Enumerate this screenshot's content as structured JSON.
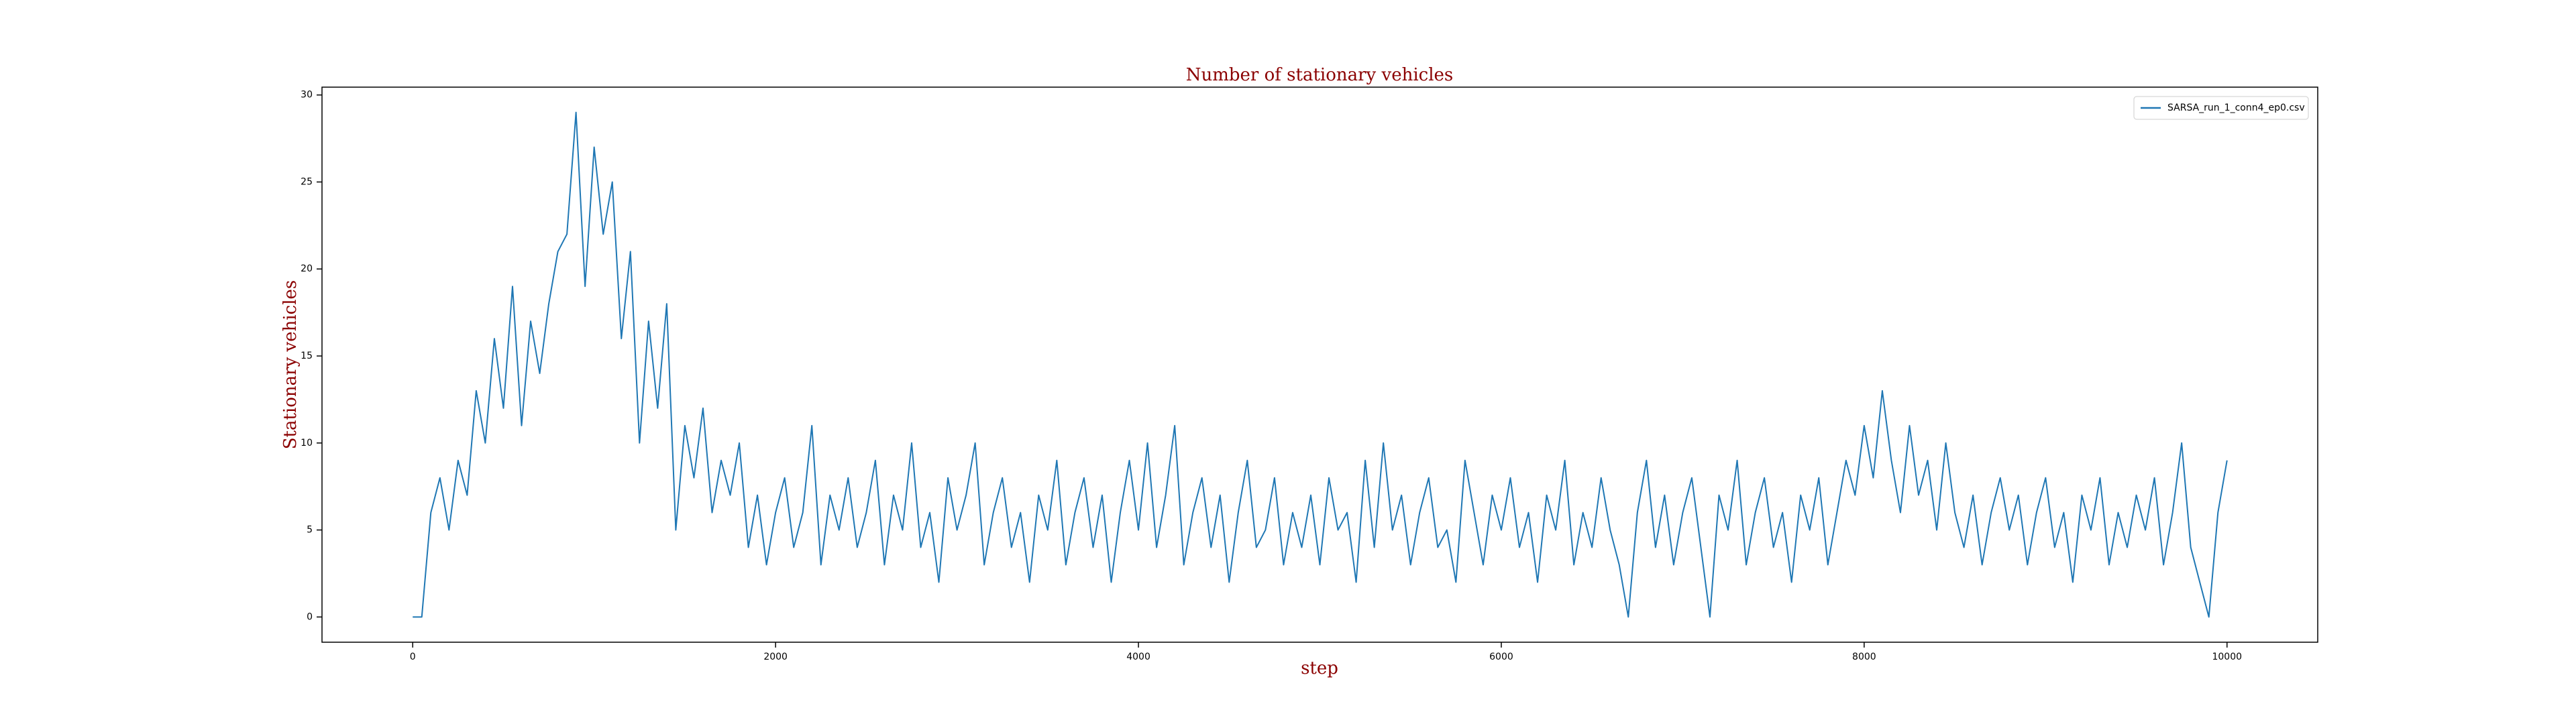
{
  "chart_data": {
    "type": "line",
    "title": "Number of stationary vehicles",
    "xlabel": "step",
    "ylabel": "Stationary vehicles",
    "x": [
      0,
      50,
      100,
      150,
      200,
      250,
      300,
      350,
      400,
      450,
      500,
      550,
      600,
      650,
      700,
      750,
      800,
      850,
      900,
      950,
      1000,
      1050,
      1100,
      1150,
      1200,
      1250,
      1300,
      1350,
      1400,
      1450,
      1500,
      1550,
      1600,
      1650,
      1700,
      1750,
      1800,
      1850,
      1900,
      1950,
      2000,
      2050,
      2100,
      2150,
      2200,
      2250,
      2300,
      2350,
      2400,
      2450,
      2500,
      2550,
      2600,
      2650,
      2700,
      2750,
      2800,
      2850,
      2900,
      2950,
      3000,
      3050,
      3100,
      3150,
      3200,
      3250,
      3300,
      3350,
      3400,
      3450,
      3500,
      3550,
      3600,
      3650,
      3700,
      3750,
      3800,
      3850,
      3900,
      3950,
      4000,
      4050,
      4100,
      4150,
      4200,
      4250,
      4300,
      4350,
      4400,
      4450,
      4500,
      4550,
      4600,
      4650,
      4700,
      4750,
      4800,
      4850,
      4900,
      4950,
      5000,
      5050,
      5100,
      5150,
      5200,
      5250,
      5300,
      5350,
      5400,
      5450,
      5500,
      5550,
      5600,
      5650,
      5700,
      5750,
      5800,
      5850,
      5900,
      5950,
      6000,
      6050,
      6100,
      6150,
      6200,
      6250,
      6300,
      6350,
      6400,
      6450,
      6500,
      6550,
      6600,
      6650,
      6700,
      6750,
      6800,
      6850,
      6900,
      6950,
      7000,
      7050,
      7100,
      7150,
      7200,
      7250,
      7300,
      7350,
      7400,
      7450,
      7500,
      7550,
      7600,
      7650,
      7700,
      7750,
      7800,
      7850,
      7900,
      7950,
      8000,
      8050,
      8100,
      8150,
      8200,
      8250,
      8300,
      8350,
      8400,
      8450,
      8500,
      8550,
      8600,
      8650,
      8700,
      8750,
      8800,
      8850,
      8900,
      8950,
      9000,
      9050,
      9100,
      9150,
      9200,
      9250,
      9300,
      9350,
      9400,
      9450,
      9500,
      9550,
      9600,
      9650,
      9700,
      9750,
      9800,
      9850,
      9900,
      9950,
      10000
    ],
    "series": [
      {
        "name": "SARSA_run_1_conn4_ep0.csv",
        "color": "#1f77b4",
        "values": [
          0,
          0,
          6,
          8,
          5,
          9,
          7,
          13,
          10,
          16,
          12,
          19,
          11,
          17,
          14,
          18,
          21,
          22,
          29,
          19,
          27,
          22,
          25,
          16,
          21,
          10,
          17,
          12,
          18,
          5,
          11,
          8,
          12,
          6,
          9,
          7,
          10,
          4,
          7,
          3,
          6,
          8,
          4,
          6,
          11,
          3,
          7,
          5,
          8,
          4,
          6,
          9,
          3,
          7,
          5,
          10,
          4,
          6,
          2,
          8,
          5,
          7,
          10,
          3,
          6,
          8,
          4,
          6,
          2,
          7,
          5,
          9,
          3,
          6,
          8,
          4,
          7,
          2,
          6,
          9,
          5,
          10,
          4,
          7,
          11,
          3,
          6,
          8,
          4,
          7,
          2,
          6,
          9,
          4,
          5,
          8,
          3,
          6,
          4,
          7,
          3,
          8,
          5,
          6,
          2,
          9,
          4,
          10,
          5,
          7,
          3,
          6,
          8,
          4,
          5,
          2,
          9,
          6,
          3,
          7,
          5,
          8,
          4,
          6,
          2,
          7,
          5,
          9,
          3,
          6,
          4,
          8,
          5,
          3,
          0,
          6,
          9,
          4,
          7,
          3,
          6,
          8,
          4,
          0,
          7,
          5,
          9,
          3,
          6,
          8,
          4,
          6,
          2,
          7,
          5,
          8,
          3,
          6,
          9,
          7,
          11,
          8,
          13,
          9,
          6,
          11,
          7,
          9,
          5,
          10,
          6,
          4,
          7,
          3,
          6,
          8,
          5,
          7,
          3,
          6,
          8,
          4,
          6,
          2,
          7,
          5,
          8,
          3,
          6,
          4,
          7,
          5,
          8,
          3,
          6,
          10,
          4,
          2,
          0,
          6,
          9
        ]
      }
    ],
    "xlim": [
      -500,
      10500
    ],
    "ylim": [
      -1.45,
      30.45
    ],
    "xticks": [
      0,
      2000,
      4000,
      6000,
      8000,
      10000
    ],
    "yticks": [
      0,
      5,
      10,
      15,
      20,
      25,
      30
    ],
    "legend": "upper right"
  }
}
